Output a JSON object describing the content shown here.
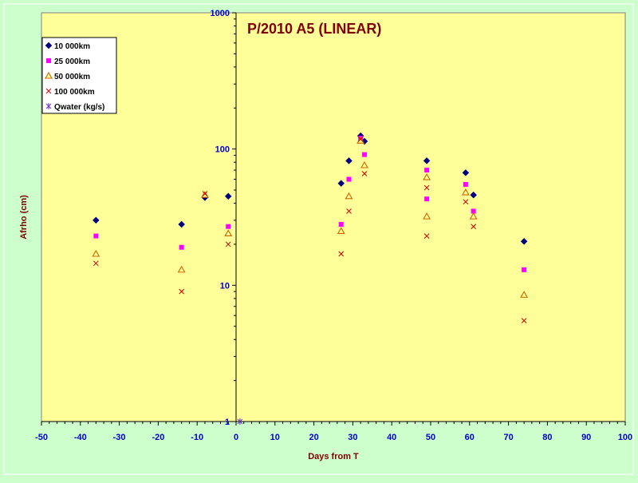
{
  "colors": {
    "background": "#ccffcc",
    "plot_area": "#ffff99",
    "title": "#800000",
    "axis_label": "#800000",
    "tick_label": "#0000cc",
    "series_10000": "#000080",
    "series_25000": "#ff00ff",
    "series_50000": "#cc6600",
    "series_100000": "#cc0000",
    "series_qwater": "#6633cc"
  },
  "chart_data": {
    "type": "scatter",
    "title": "P/2010 A5 (LINEAR)",
    "xlabel": "Days from T",
    "ylabel": "Afrho (cm)",
    "xlim": [
      -50,
      100
    ],
    "ylim": [
      1,
      1000
    ],
    "y_scale": "log",
    "x_ticks": [
      "-50",
      "-40",
      "-30",
      "-20",
      "-10",
      "0",
      "10",
      "20",
      "30",
      "40",
      "50",
      "60",
      "70",
      "80",
      "90",
      "100"
    ],
    "y_ticks": [
      "1",
      "10",
      "100",
      "1000"
    ],
    "y_axis_position": "x = 0",
    "grid": false,
    "legend_position": "top-left",
    "series": [
      {
        "name": "10 000km",
        "marker": "diamond",
        "points": [
          [
            -36,
            30
          ],
          [
            -14,
            28
          ],
          [
            -8,
            44
          ],
          [
            -2,
            45
          ],
          [
            27,
            56
          ],
          [
            29,
            82
          ],
          [
            32,
            125
          ],
          [
            33,
            114
          ],
          [
            49,
            82
          ],
          [
            59,
            67
          ],
          [
            61,
            46
          ],
          [
            74,
            21
          ]
        ]
      },
      {
        "name": "25 000km",
        "marker": "square",
        "points": [
          [
            -36,
            23
          ],
          [
            -14,
            19
          ],
          [
            -2,
            27
          ],
          [
            27,
            28
          ],
          [
            29,
            60
          ],
          [
            32,
            120
          ],
          [
            33,
            91
          ],
          [
            49,
            43
          ],
          [
            49,
            70
          ],
          [
            59,
            55
          ],
          [
            61,
            35
          ],
          [
            74,
            13
          ]
        ]
      },
      {
        "name": "50 000km",
        "marker": "triangle",
        "points": [
          [
            -36,
            17
          ],
          [
            -14,
            13
          ],
          [
            -8,
            46
          ],
          [
            -2,
            24
          ],
          [
            27,
            25
          ],
          [
            29,
            45
          ],
          [
            32,
            115
          ],
          [
            33,
            76
          ],
          [
            49,
            32
          ],
          [
            49,
            62
          ],
          [
            59,
            48
          ],
          [
            61,
            32
          ],
          [
            74,
            8.5
          ]
        ]
      },
      {
        "name": "100 000km",
        "marker": "x",
        "points": [
          [
            -36,
            14.5
          ],
          [
            -14,
            9
          ],
          [
            -8,
            47
          ],
          [
            -2,
            20
          ],
          [
            27,
            17
          ],
          [
            29,
            35
          ],
          [
            32,
            118
          ],
          [
            33,
            66
          ],
          [
            49,
            23
          ],
          [
            49,
            52
          ],
          [
            59,
            41
          ],
          [
            61,
            27
          ],
          [
            74,
            5.5
          ]
        ]
      },
      {
        "name": "Qwater (kg/s)",
        "marker": "asterisk",
        "points": [
          [
            1,
            1
          ]
        ]
      }
    ]
  }
}
